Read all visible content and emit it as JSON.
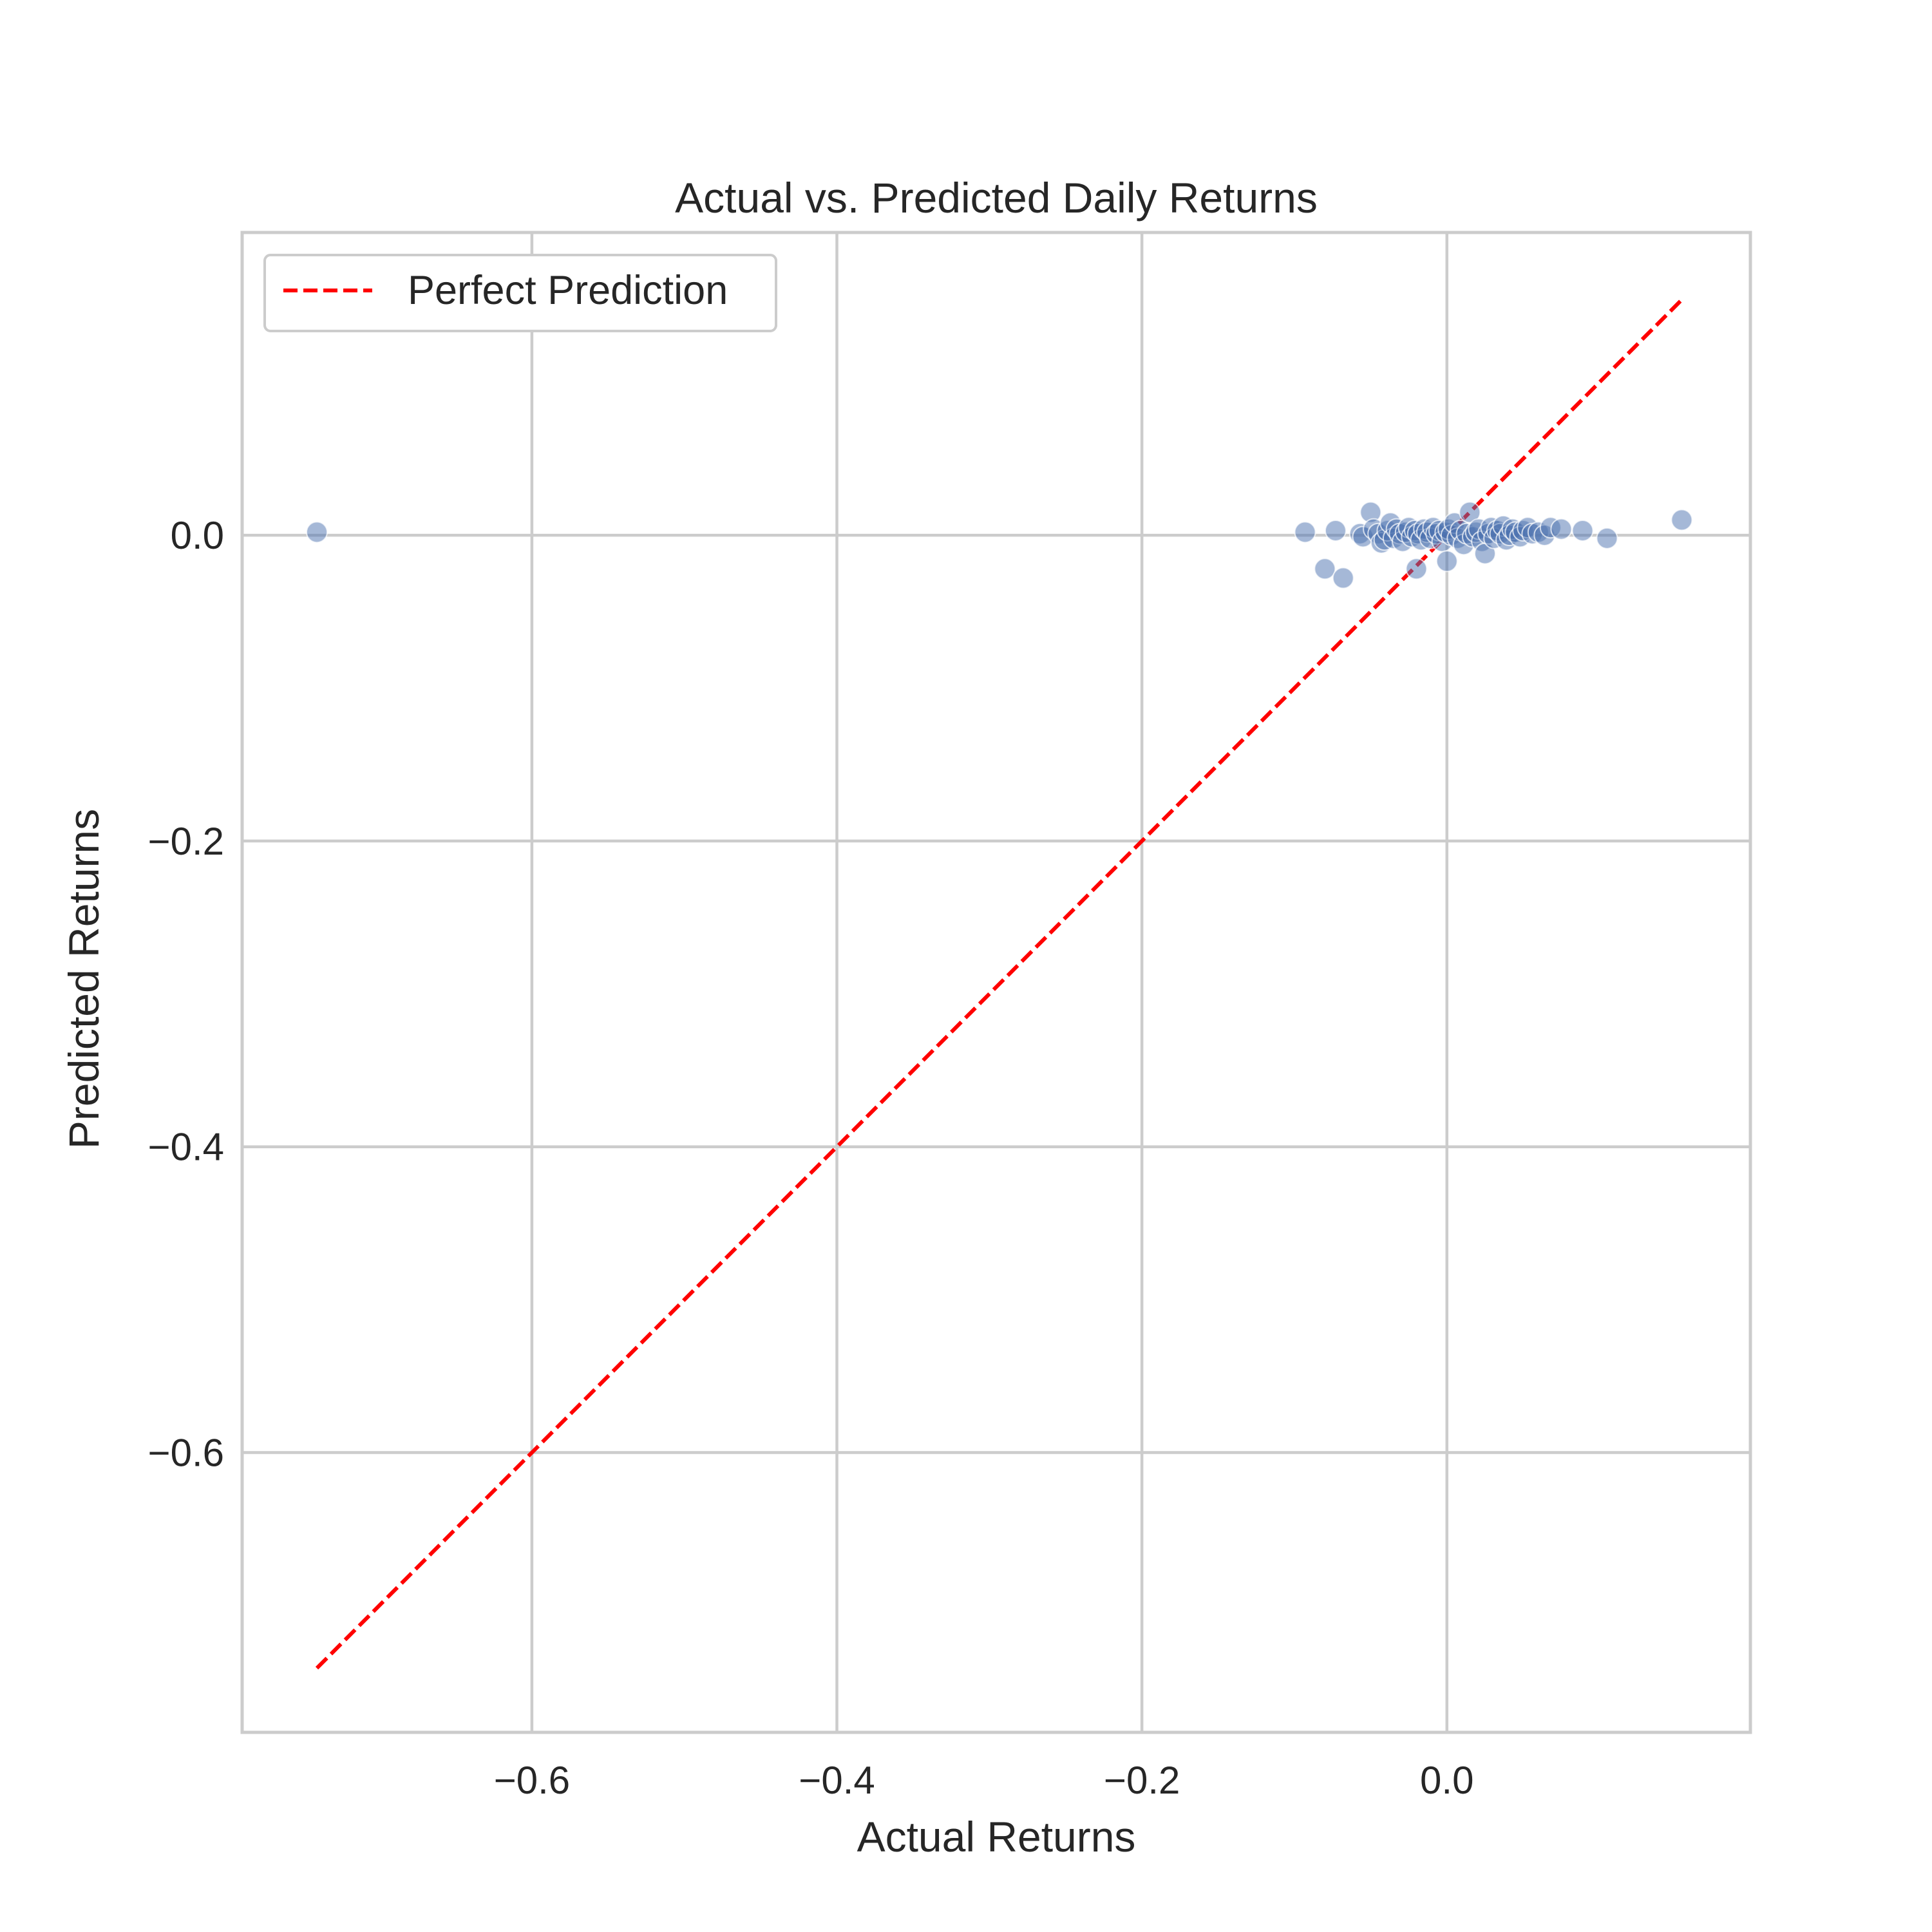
{
  "chart_data": {
    "type": "scatter",
    "title": "Actual vs. Predicted Daily Returns",
    "xlabel": "Actual Returns",
    "ylabel": "Predicted Returns",
    "xlim": [
      -0.79,
      0.199
    ],
    "ylim": [
      -0.783,
      0.198
    ],
    "xticks": [
      -0.6,
      -0.4,
      -0.2,
      0.0
    ],
    "xtick_labels": [
      "−0.6",
      "−0.4",
      "−0.2",
      "0.0"
    ],
    "yticks": [
      0.0,
      -0.2,
      -0.4,
      -0.6
    ],
    "ytick_labels": [
      "0.0",
      "−0.2",
      "−0.4",
      "−0.6"
    ],
    "grid": true,
    "legend": {
      "placement": "top-left",
      "entries": [
        "Perfect Prediction"
      ]
    },
    "colors": {
      "points": "#4c72b0",
      "reference_line": "#ff0000",
      "grid": "#cccccc",
      "axes_edge": "#cccccc"
    },
    "reference_line": {
      "name": "Perfect Prediction",
      "style": "dashed",
      "x": [
        -0.741,
        0.154
      ],
      "y": [
        -0.741,
        0.154
      ]
    },
    "series": [
      {
        "points": [
          [
            -0.741,
            0.002
          ],
          [
            -0.093,
            0.002
          ],
          [
            -0.073,
            0.003
          ],
          [
            -0.08,
            -0.022
          ],
          [
            -0.068,
            -0.028
          ],
          [
            -0.057,
            0.001
          ],
          [
            -0.055,
            -0.001
          ],
          [
            -0.05,
            0.015
          ],
          [
            -0.048,
            0.004
          ],
          [
            -0.045,
            0.001
          ],
          [
            -0.043,
            -0.005
          ],
          [
            -0.041,
            -0.003
          ],
          [
            -0.039,
            0.003
          ],
          [
            -0.037,
            0.008
          ],
          [
            -0.035,
            -0.002
          ],
          [
            -0.033,
            0.004
          ],
          [
            -0.031,
            0.001
          ],
          [
            -0.029,
            -0.004
          ],
          [
            -0.027,
            0.002
          ],
          [
            -0.025,
            0.005
          ],
          [
            -0.023,
            -0.001
          ],
          [
            -0.021,
            0.003
          ],
          [
            -0.02,
            -0.022
          ],
          [
            -0.019,
            0.001
          ],
          [
            -0.017,
            -0.003
          ],
          [
            -0.015,
            0.004
          ],
          [
            -0.013,
            0.002
          ],
          [
            -0.011,
            -0.002
          ],
          [
            -0.009,
            0.005
          ],
          [
            -0.007,
            0.001
          ],
          [
            -0.005,
            0.003
          ],
          [
            -0.003,
            -0.004
          ],
          [
            -0.001,
            0.002
          ],
          [
            0.0,
            -0.017
          ],
          [
            0.001,
            0.004
          ],
          [
            0.003,
            0.0
          ],
          [
            0.005,
            0.008
          ],
          [
            0.007,
            -0.002
          ],
          [
            0.009,
            0.003
          ],
          [
            0.011,
            -0.006
          ],
          [
            0.013,
            0.001
          ],
          [
            0.015,
            0.015
          ],
          [
            0.017,
            -0.001
          ],
          [
            0.019,
            0.002
          ],
          [
            0.021,
            0.004
          ],
          [
            0.023,
            -0.004
          ],
          [
            0.025,
            -0.012
          ],
          [
            0.027,
            0.001
          ],
          [
            0.029,
            0.005
          ],
          [
            0.031,
            -0.002
          ],
          [
            0.033,
            0.003
          ],
          [
            0.035,
            0.001
          ],
          [
            0.037,
            0.006
          ],
          [
            0.039,
            -0.003
          ],
          [
            0.041,
            0.0
          ],
          [
            0.043,
            0.004
          ],
          [
            0.045,
            0.002
          ],
          [
            0.048,
            -0.001
          ],
          [
            0.05,
            0.003
          ],
          [
            0.053,
            0.005
          ],
          [
            0.056,
            0.001
          ],
          [
            0.06,
            0.002
          ],
          [
            0.064,
            0.0
          ],
          [
            0.068,
            0.005
          ],
          [
            0.075,
            0.004
          ],
          [
            0.089,
            0.003
          ],
          [
            0.105,
            -0.002
          ],
          [
            0.154,
            0.01
          ]
        ]
      }
    ]
  }
}
